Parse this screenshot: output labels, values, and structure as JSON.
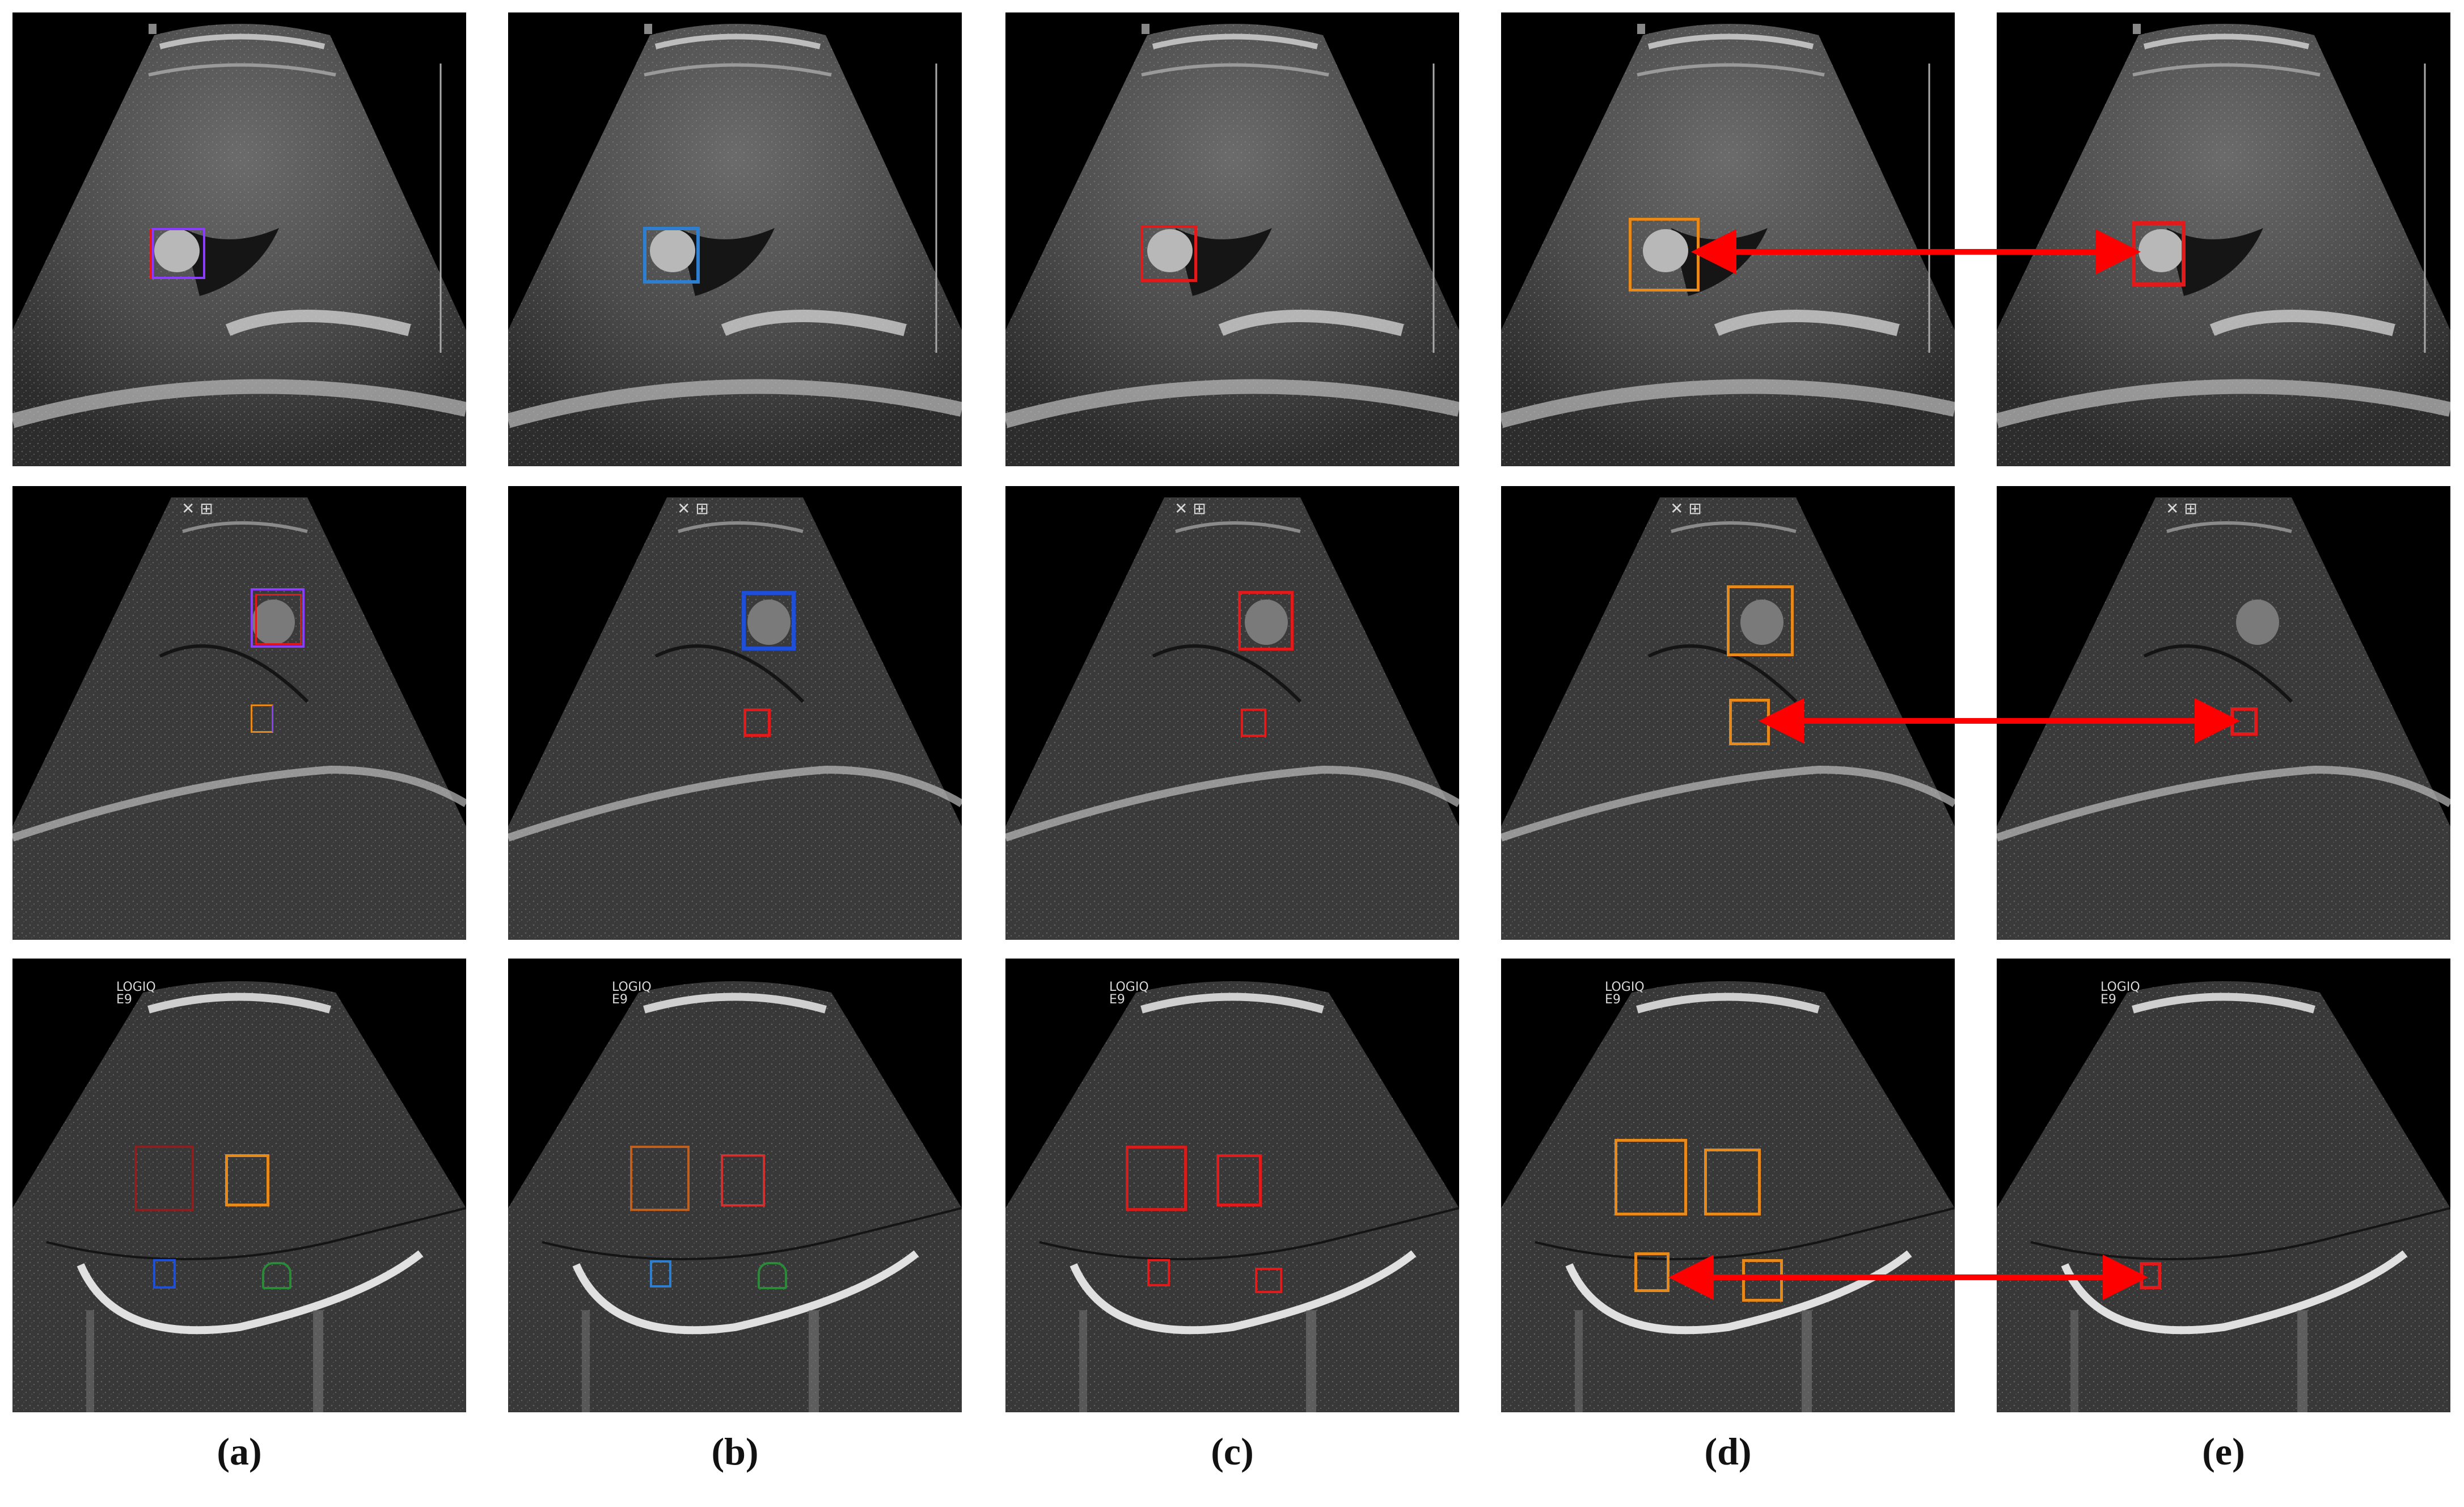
{
  "captions": [
    "(a)",
    "(b)",
    "(c)",
    "(d)",
    "(e)"
  ],
  "panel_overlay_text": {
    "row3_label": "LOGIQ\nE9",
    "row2_label": "✕ ⊞"
  },
  "colors": {
    "purple": "#8a3cff",
    "blue": "#1f4fd6",
    "steelblue": "#2f7fd0",
    "red": "#e11b1b",
    "orange": "#e58a1b",
    "green": "#2a8a3a",
    "arrow": "#ff0000"
  }
}
